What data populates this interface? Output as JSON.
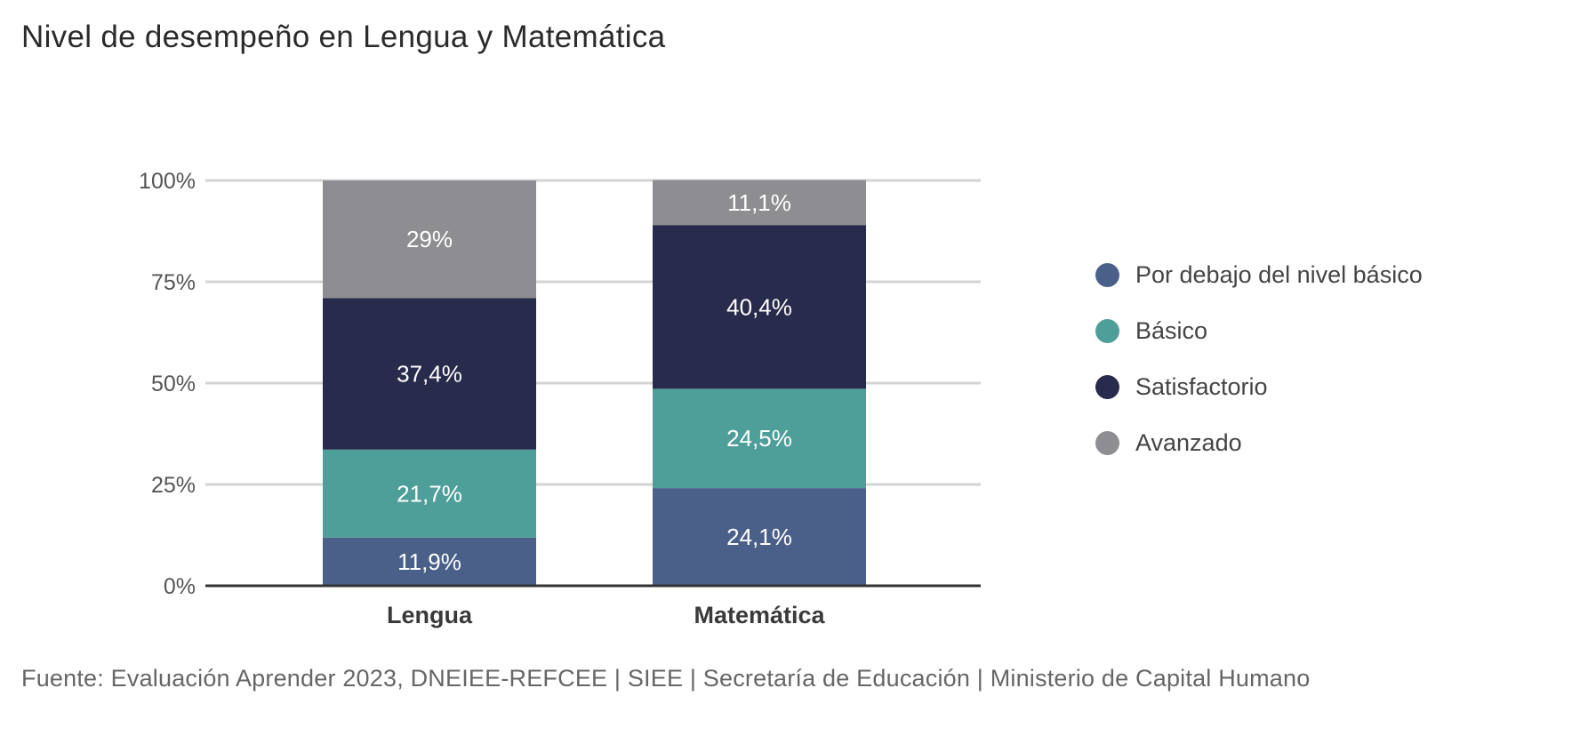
{
  "chart_data": {
    "type": "bar",
    "stacked": true,
    "title": "Nivel de desempeño en Lengua y Matemática",
    "xlabel": "",
    "ylabel": "",
    "ylim": [
      0,
      100
    ],
    "yticks": [
      0,
      25,
      50,
      75,
      100
    ],
    "ytick_labels": [
      "0%",
      "25%",
      "50%",
      "75%",
      "100%"
    ],
    "grid": true,
    "legend_position": "right",
    "categories": [
      "Lengua",
      "Matemática"
    ],
    "series": [
      {
        "name": "Por debajo del nivel básico",
        "color": "#4a6089",
        "values": [
          11.9,
          24.1
        ],
        "labels": [
          "11,9%",
          "24,1%"
        ]
      },
      {
        "name": "Básico",
        "color": "#4e9e9a",
        "values": [
          21.7,
          24.5
        ],
        "labels": [
          "21,7%",
          "24,5%"
        ]
      },
      {
        "name": "Satisfactorio",
        "color": "#282b4b",
        "values": [
          37.4,
          40.4
        ],
        "labels": [
          "37,4%",
          "40,4%"
        ]
      },
      {
        "name": "Avanzado",
        "color": "#8e8e92",
        "values": [
          29,
          11.1
        ],
        "labels": [
          "29%",
          "11,1%"
        ]
      }
    ]
  },
  "source": "Fuente: Evaluación Aprender 2023, DNEIEE-REFCEE | SIEE | Secretaría de Educación | Ministerio de Capital Humano"
}
